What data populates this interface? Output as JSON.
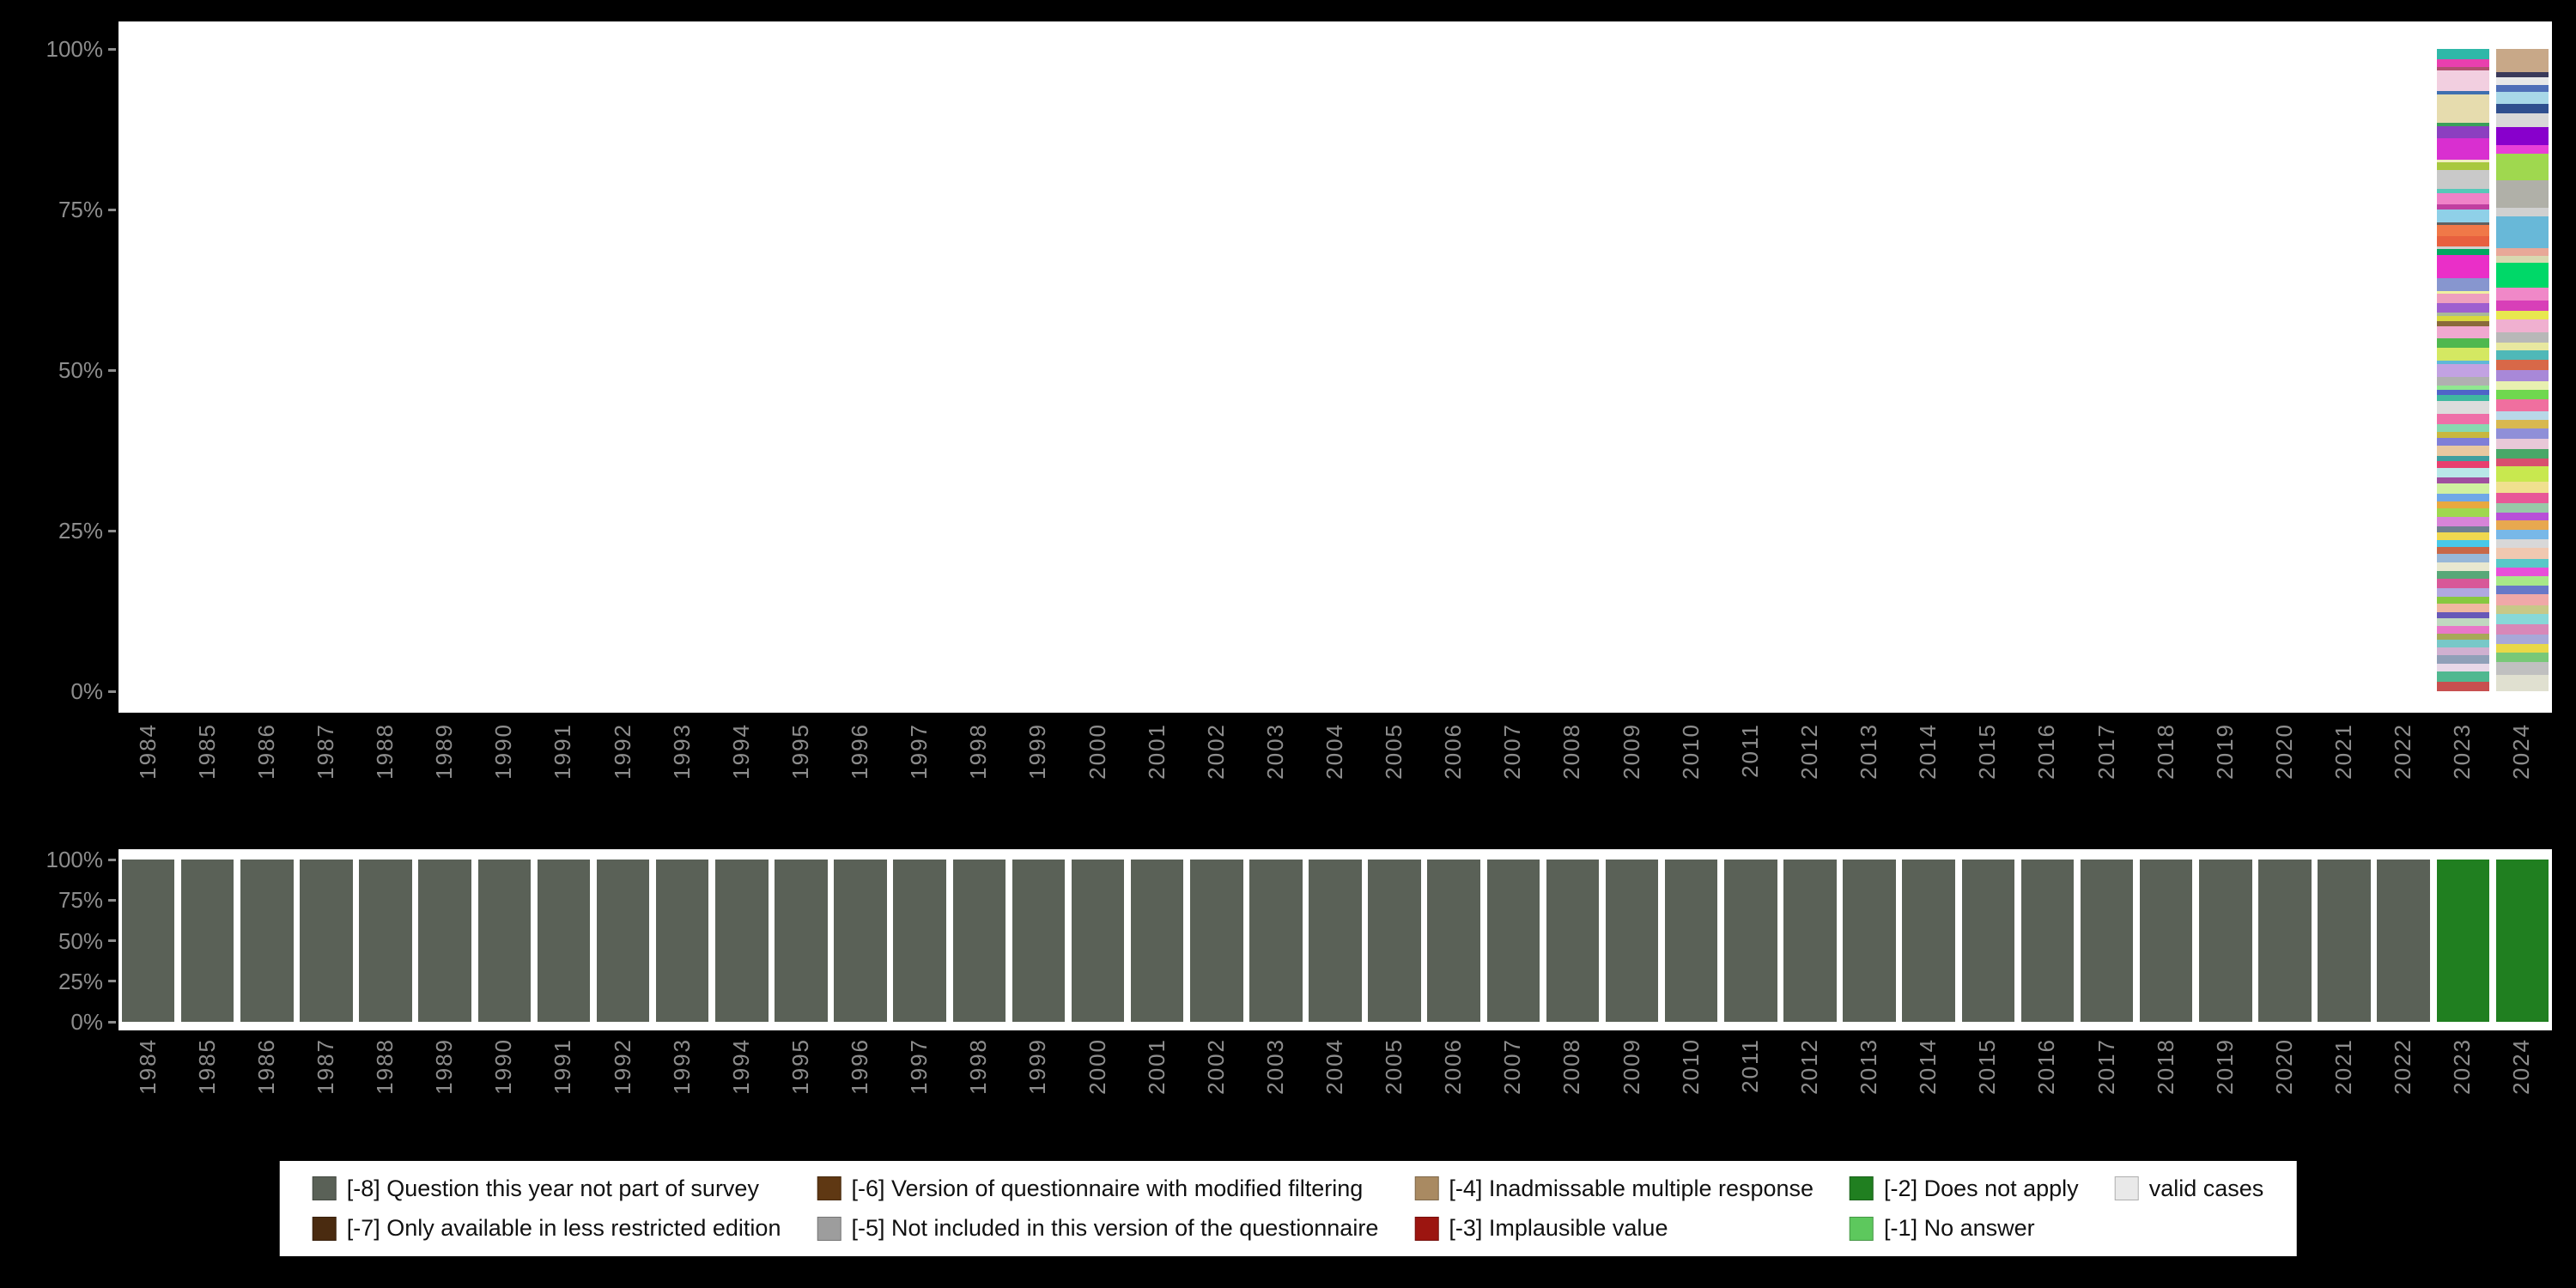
{
  "colors": {
    "background": "#000000",
    "plot_background": "#ffffff",
    "axis_text": "#8d8d8d",
    "legend_background": "#ffffff",
    "legend_text": "#111111"
  },
  "chart_data": [
    {
      "name": "answer-category-distribution-by-year",
      "type": "bar",
      "stacked": true,
      "unit": "percent",
      "ylim": [
        0,
        100
      ],
      "yticks": [
        "100%",
        "75%",
        "50%",
        "25%",
        "0%"
      ],
      "legend_position": "bottom",
      "grid": false,
      "categories": [
        "1984",
        "1985",
        "1986",
        "1987",
        "1988",
        "1989",
        "1990",
        "1991",
        "1992",
        "1993",
        "1994",
        "1995",
        "1996",
        "1997",
        "1998",
        "1999",
        "2000",
        "2001",
        "2002",
        "2003",
        "2004",
        "2005",
        "2006",
        "2007",
        "2008",
        "2009",
        "2010",
        "2011",
        "2012",
        "2013",
        "2014",
        "2015",
        "2016",
        "2017",
        "2018",
        "2019",
        "2020",
        "2021",
        "2022",
        "2023",
        "2024"
      ],
      "bars": {
        "2023": {
          "segments": [
            {
              "c": "#2fb8a8",
              "p": 1.6
            },
            {
              "c": "#e93fae",
              "p": 1.2
            },
            {
              "c": "#b04f6e",
              "p": 0.5
            },
            {
              "c": "#f2cfe0",
              "p": 3.2
            },
            {
              "c": "#3f6fb0",
              "p": 0.5
            },
            {
              "c": "#e6dcae",
              "p": 4.4
            },
            {
              "c": "#3aa05a",
              "p": 0.5
            },
            {
              "c": "#8c3fc0",
              "p": 1.8
            },
            {
              "c": "#d92fd0",
              "p": 3.4
            },
            {
              "c": "#f0eec0",
              "p": 0.4
            },
            {
              "c": "#a8c83f",
              "p": 1.1
            },
            {
              "c": "#c9c9c9",
              "p": 3.0
            },
            {
              "c": "#57c8b8",
              "p": 0.6
            },
            {
              "c": "#ef82c8",
              "p": 1.8
            },
            {
              "c": "#c03fa0",
              "p": 0.7
            },
            {
              "c": "#8fd0e8",
              "p": 2.0
            },
            {
              "c": "#606060",
              "p": 0.4
            },
            {
              "c": "#f07848",
              "p": 1.8
            },
            {
              "c": "#e8603f",
              "p": 1.5
            },
            {
              "c": "#d0d0d0",
              "p": 0.5
            },
            {
              "c": "#00a860",
              "p": 0.9
            },
            {
              "c": "#ea2fc8",
              "p": 3.6
            },
            {
              "c": "#8796cf",
              "p": 1.9
            },
            {
              "c": "#f0f0a0",
              "p": 0.4
            },
            {
              "c": "#ef9fbf",
              "p": 1.5
            },
            {
              "c": "#9f5fd0",
              "p": 1.4
            },
            {
              "c": "#a8b89a",
              "p": 0.6
            },
            {
              "c": "#d8d83f",
              "p": 0.8
            },
            {
              "c": "#8a6a3a",
              "p": 0.7
            },
            {
              "c": "#f0a8cf",
              "p": 1.9
            },
            {
              "c": "#4fb84f",
              "p": 1.4
            },
            {
              "c": "#d4e862",
              "p": 2.1
            },
            {
              "c": "#60b8d8",
              "p": 0.5
            },
            {
              "c": "#c2a2e2",
              "p": 1.9
            },
            {
              "c": "#b0b0b0",
              "p": 1.4
            },
            {
              "c": "#90e890",
              "p": 0.6
            },
            {
              "c": "#4f64c8",
              "p": 0.8
            },
            {
              "c": "#3fb8a0",
              "p": 1.0
            },
            {
              "c": "#dcdcdc",
              "p": 1.9
            },
            {
              "c": "#ef6fa8",
              "p": 1.6
            },
            {
              "c": "#88d8b0",
              "p": 1.2
            },
            {
              "c": "#c8b83f",
              "p": 0.9
            },
            {
              "c": "#7f7fd8",
              "p": 1.3
            },
            {
              "c": "#e8c8a0",
              "p": 1.5
            },
            {
              "c": "#3f9f9f",
              "p": 0.8
            },
            {
              "c": "#e83f6f",
              "p": 1.1
            },
            {
              "c": "#b8e8e8",
              "p": 1.4
            },
            {
              "c": "#a04f9f",
              "p": 1.0
            },
            {
              "c": "#d0f0a0",
              "p": 1.6
            },
            {
              "c": "#6fa8e8",
              "p": 1.2
            },
            {
              "c": "#e8a83f",
              "p": 1.0
            },
            {
              "c": "#9fd84f",
              "p": 1.3
            },
            {
              "c": "#d884d8",
              "p": 1.5
            },
            {
              "c": "#708090",
              "p": 0.9
            },
            {
              "c": "#f0d84f",
              "p": 1.2
            },
            {
              "c": "#48c8e8",
              "p": 1.1
            },
            {
              "c": "#c86848",
              "p": 1.0
            },
            {
              "c": "#98b8d8",
              "p": 1.4
            },
            {
              "c": "#e8e8d0",
              "p": 1.3
            },
            {
              "c": "#58a878",
              "p": 1.2
            },
            {
              "c": "#d85898",
              "p": 1.4
            },
            {
              "c": "#b0a8e0",
              "p": 1.3
            },
            {
              "c": "#88c840",
              "p": 1.1
            },
            {
              "c": "#f0b8a0",
              "p": 1.3
            },
            {
              "c": "#6858b8",
              "p": 1.0
            },
            {
              "c": "#c0d8c0",
              "p": 1.2
            },
            {
              "c": "#e878c8",
              "p": 1.1
            },
            {
              "c": "#a8a858",
              "p": 1.0
            },
            {
              "c": "#78c8c8",
              "p": 1.1
            },
            {
              "c": "#d0b0d0",
              "p": 1.2
            },
            {
              "c": "#90a0b8",
              "p": 1.4
            },
            {
              "c": "#e8d8e8",
              "p": 1.2
            },
            {
              "c": "#50b890",
              "p": 1.5
            },
            {
              "c": "#c84f4f",
              "p": 1.5
            }
          ]
        },
        "2024": {
          "segments": [
            {
              "c": "#c8a888",
              "p": 2.8
            },
            {
              "c": "#3a3a5a",
              "p": 0.6
            },
            {
              "c": "#e8e8e8",
              "p": 1.0
            },
            {
              "c": "#4f6fb8",
              "p": 0.8
            },
            {
              "c": "#a8d8e8",
              "p": 1.4
            },
            {
              "c": "#2f4f8f",
              "p": 1.2
            },
            {
              "c": "#d8d8d8",
              "p": 1.6
            },
            {
              "c": "#8800cc",
              "p": 2.2
            },
            {
              "c": "#e83fd8",
              "p": 1.0
            },
            {
              "c": "#9fd84f",
              "p": 3.2
            },
            {
              "c": "#b0b0a8",
              "p": 3.4
            },
            {
              "c": "#d0d0d0",
              "p": 1.0
            },
            {
              "c": "#68b8d8",
              "p": 3.8
            },
            {
              "c": "#e8a898",
              "p": 1.0
            },
            {
              "c": "#d8d8b0",
              "p": 0.8
            },
            {
              "c": "#00d868",
              "p": 3.0
            },
            {
              "c": "#f088c8",
              "p": 1.6
            },
            {
              "c": "#d83fb8",
              "p": 1.2
            },
            {
              "c": "#e8e84f",
              "p": 1.0
            },
            {
              "c": "#f0b0d0",
              "p": 1.6
            },
            {
              "c": "#b8b8b8",
              "p": 1.2
            },
            {
              "c": "#e8e8a0",
              "p": 1.0
            },
            {
              "c": "#4fb8b8",
              "p": 1.1
            },
            {
              "c": "#d86848",
              "p": 1.2
            },
            {
              "c": "#a888d8",
              "p": 1.4
            },
            {
              "c": "#e8f0b0",
              "p": 1.0
            },
            {
              "c": "#6fd84f",
              "p": 1.2
            },
            {
              "c": "#f06f9f",
              "p": 1.4
            },
            {
              "c": "#b8d8e8",
              "p": 1.1
            },
            {
              "c": "#d8b84f",
              "p": 1.0
            },
            {
              "c": "#8f8fd8",
              "p": 1.2
            },
            {
              "c": "#e8c8d8",
              "p": 1.3
            },
            {
              "c": "#48a868",
              "p": 1.1
            },
            {
              "c": "#d84f6f",
              "p": 1.0
            },
            {
              "c": "#c8e84f",
              "p": 1.8
            },
            {
              "c": "#f0e08f",
              "p": 1.4
            },
            {
              "c": "#e85898",
              "p": 1.2
            },
            {
              "c": "#98c8a8",
              "p": 1.1
            },
            {
              "c": "#b84fd8",
              "p": 1.0
            },
            {
              "c": "#e8a84f",
              "p": 1.1
            },
            {
              "c": "#78b8e8",
              "p": 1.2
            },
            {
              "c": "#d8d8d8",
              "p": 1.0
            },
            {
              "c": "#f0c8b0",
              "p": 1.3
            },
            {
              "c": "#58c8c8",
              "p": 1.1
            },
            {
              "c": "#e84fd8",
              "p": 1.0
            },
            {
              "c": "#a8e888",
              "p": 1.2
            },
            {
              "c": "#6878c8",
              "p": 1.0
            },
            {
              "c": "#f0a8a8",
              "p": 1.3
            },
            {
              "c": "#c8c888",
              "p": 1.1
            },
            {
              "c": "#88d8d8",
              "p": 1.2
            },
            {
              "c": "#d888b8",
              "p": 1.3
            },
            {
              "c": "#a8a8d8",
              "p": 1.1
            },
            {
              "c": "#e8d848",
              "p": 1.0
            },
            {
              "c": "#78c878",
              "p": 1.2
            },
            {
              "c": "#c0c0c0",
              "p": 1.5
            },
            {
              "c": "#e0e0d0",
              "p": 2.0
            }
          ]
        }
      }
    },
    {
      "name": "missing-values-by-year",
      "type": "bar",
      "stacked": true,
      "unit": "percent",
      "ylim": [
        0,
        100
      ],
      "yticks": [
        "100%",
        "75%",
        "50%",
        "25%",
        "0%"
      ],
      "grid": false,
      "categories": [
        "1984",
        "1985",
        "1986",
        "1987",
        "1988",
        "1989",
        "1990",
        "1991",
        "1992",
        "1993",
        "1994",
        "1995",
        "1996",
        "1997",
        "1998",
        "1999",
        "2000",
        "2001",
        "2002",
        "2003",
        "2004",
        "2005",
        "2006",
        "2007",
        "2008",
        "2009",
        "2010",
        "2011",
        "2012",
        "2013",
        "2014",
        "2015",
        "2016",
        "2017",
        "2018",
        "2019",
        "2020",
        "2021",
        "2022",
        "2023",
        "2024"
      ],
      "series": [
        {
          "name": "[-8] Question this year not part of survey",
          "color": "#5a6157",
          "values": [
            100,
            100,
            100,
            100,
            100,
            100,
            100,
            100,
            100,
            100,
            100,
            100,
            100,
            100,
            100,
            100,
            100,
            100,
            100,
            100,
            100,
            100,
            100,
            100,
            100,
            100,
            100,
            100,
            100,
            100,
            100,
            100,
            100,
            100,
            100,
            100,
            100,
            100,
            100,
            0,
            0
          ]
        },
        {
          "name": "[-2] Does not apply",
          "color": "#207f20",
          "values": [
            0,
            0,
            0,
            0,
            0,
            0,
            0,
            0,
            0,
            0,
            0,
            0,
            0,
            0,
            0,
            0,
            0,
            0,
            0,
            0,
            0,
            0,
            0,
            0,
            0,
            0,
            0,
            0,
            0,
            0,
            0,
            0,
            0,
            0,
            0,
            0,
            0,
            0,
            0,
            100,
            100
          ]
        }
      ]
    }
  ],
  "legend": {
    "items": [
      {
        "key": "m8",
        "label": "[-8] Question this year not part of survey",
        "color": "#5a6157"
      },
      {
        "key": "m7",
        "label": "[-7] Only available in less restricted edition",
        "color": "#4a2b10"
      },
      {
        "key": "m6",
        "label": "[-6] Version of questionnaire with modified filtering",
        "color": "#5f3813"
      },
      {
        "key": "m5",
        "label": "[-5] Not included in this version of the questionnaire",
        "color": "#9d9d9d"
      },
      {
        "key": "m4",
        "label": "[-4] Inadmissable multiple response",
        "color": "#a98a62"
      },
      {
        "key": "m3",
        "label": "[-3] Implausible value",
        "color": "#9c1510"
      },
      {
        "key": "m2",
        "label": "[-2] Does not apply",
        "color": "#207f20"
      },
      {
        "key": "m1",
        "label": "[-1] No answer",
        "color": "#5dc85d"
      },
      {
        "key": "valid",
        "label": "valid cases",
        "color": "#e9e9e9"
      }
    ]
  }
}
